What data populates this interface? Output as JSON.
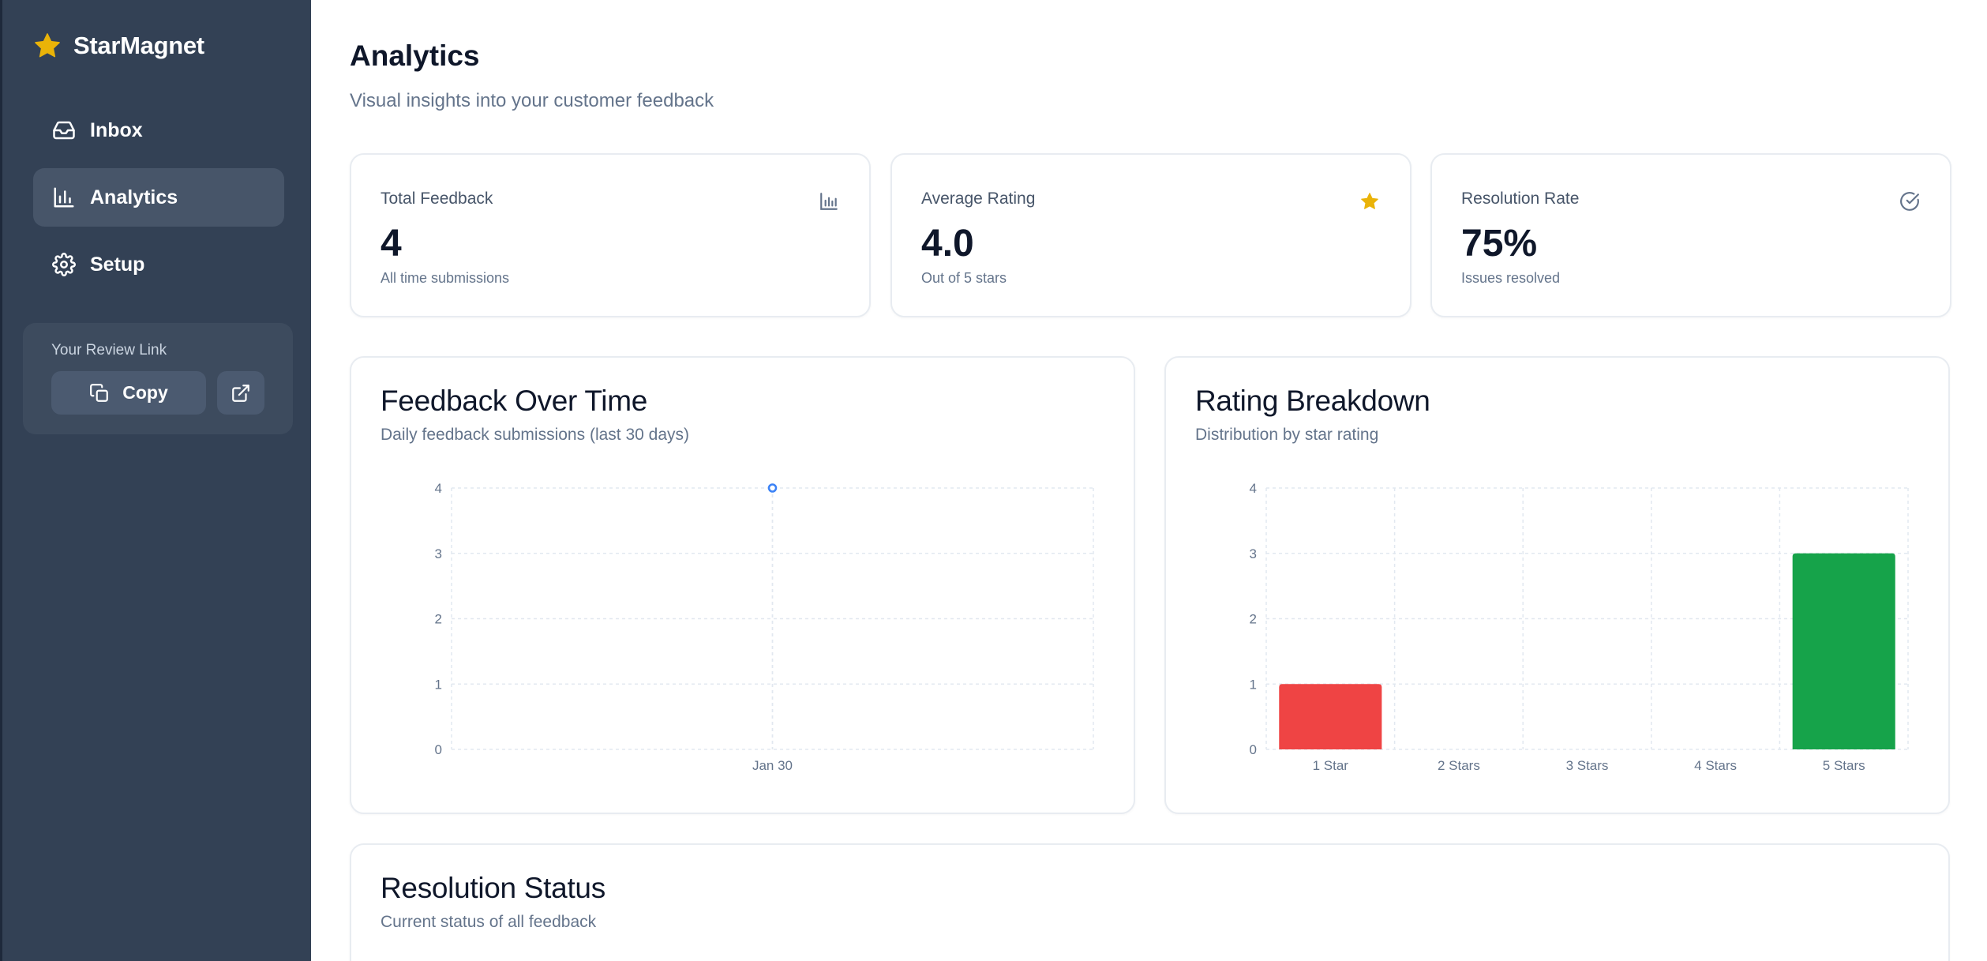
{
  "app": {
    "name": "StarMagnet"
  },
  "colors": {
    "brand_star": "#eab308",
    "sidebar_bg": "#334155",
    "bar_low": "#ef4444",
    "bar_high": "#16a34a",
    "line": "#3b82f6"
  },
  "sidebar": {
    "items": [
      {
        "label": "Inbox",
        "icon": "inbox-icon",
        "active": false
      },
      {
        "label": "Analytics",
        "icon": "bar-chart-icon",
        "active": true
      },
      {
        "label": "Setup",
        "icon": "gear-icon",
        "active": false
      }
    ],
    "review_link": {
      "label": "Your Review Link",
      "copy_label": "Copy"
    }
  },
  "main": {
    "title": "Analytics",
    "subtitle": "Visual insights into your customer feedback"
  },
  "stats": [
    {
      "label": "Total Feedback",
      "value": "4",
      "sub": "All time submissions",
      "icon": "bar-chart-icon"
    },
    {
      "label": "Average Rating",
      "value": "4.0",
      "sub": "Out of 5 stars",
      "icon": "star-icon"
    },
    {
      "label": "Resolution Rate",
      "value": "75%",
      "sub": "Issues resolved",
      "icon": "check-circle-icon"
    }
  ],
  "panels": {
    "feedback_over_time": {
      "title": "Feedback Over Time",
      "subtitle": "Daily feedback submissions (last 30 days)"
    },
    "rating_breakdown": {
      "title": "Rating Breakdown",
      "subtitle": "Distribution by star rating"
    },
    "resolution_status": {
      "title": "Resolution Status",
      "subtitle": "Current status of all feedback"
    }
  },
  "chart_data": [
    {
      "type": "line",
      "x": [
        "Jan 30"
      ],
      "series": [
        {
          "values": [
            4
          ]
        }
      ],
      "yticks": [
        0,
        1,
        2,
        3,
        4
      ],
      "ylim": [
        0,
        4
      ],
      "grid": true
    },
    {
      "type": "bar",
      "categories": [
        "1 Star",
        "2 Stars",
        "3 Stars",
        "4 Stars",
        "5 Stars"
      ],
      "values": [
        1,
        0,
        0,
        0,
        3
      ],
      "colors": [
        "#ef4444",
        "#f97316",
        "#eab308",
        "#84cc16",
        "#16a34a"
      ],
      "yticks": [
        0,
        1,
        2,
        3,
        4
      ],
      "ylim": [
        0,
        4
      ],
      "grid": true
    }
  ]
}
